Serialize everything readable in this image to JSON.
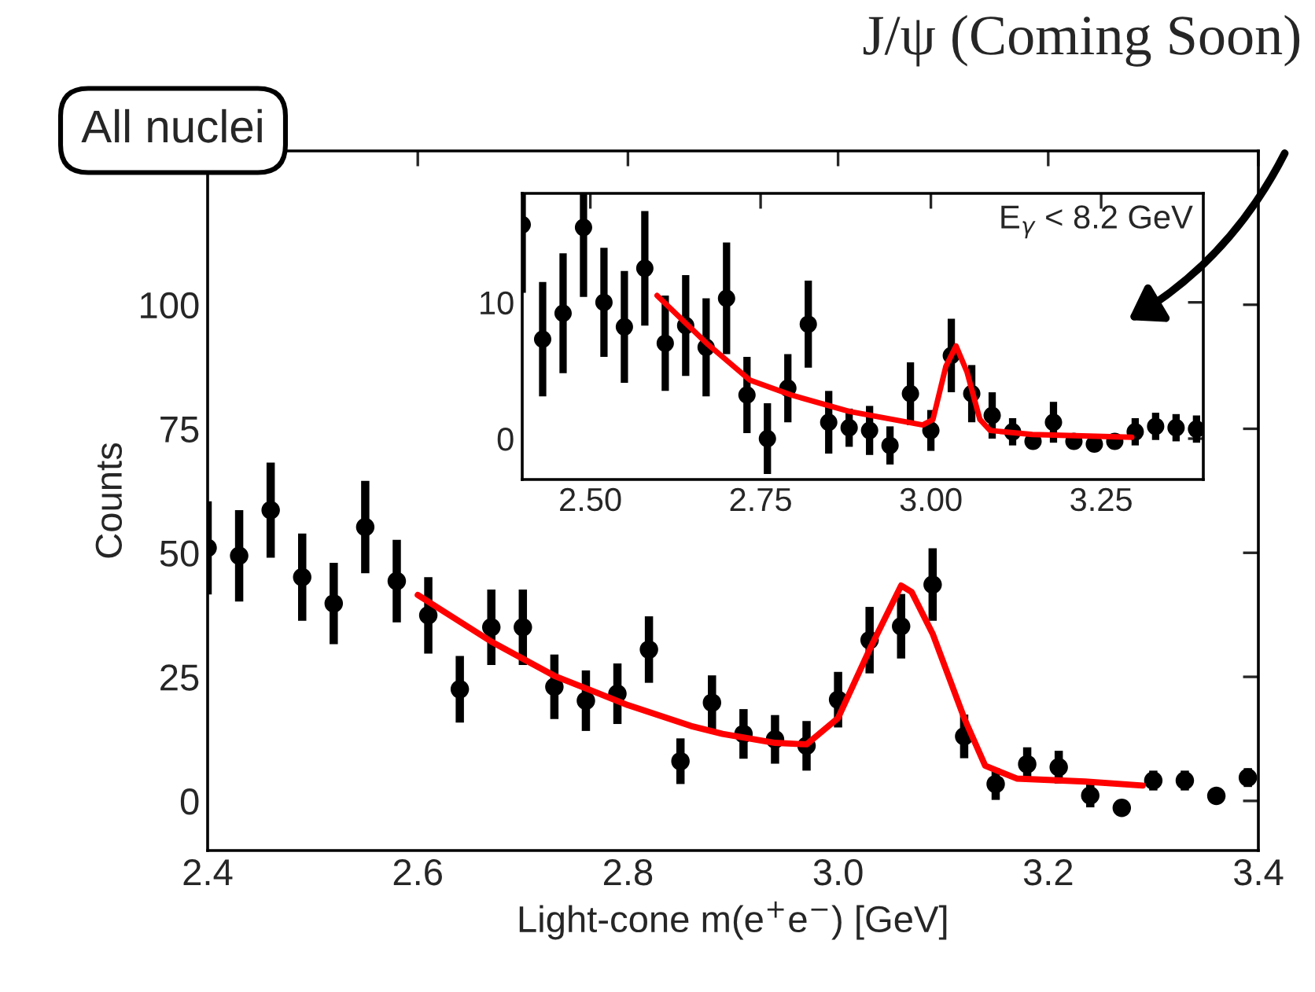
{
  "chart_data": [
    {
      "type": "scatter",
      "title": "J/ψ (Coming Soon)",
      "xlabel": "Light-cone m(e$^{+}$e$^{−}$) [GeV]",
      "ylabel": "Counts",
      "xlim": [
        2.4,
        3.4
      ],
      "xticks": [
        {
          "value": 2.4,
          "label": "2.4"
        },
        {
          "value": 2.6,
          "label": "2.6"
        },
        {
          "value": 2.8,
          "label": "2.8"
        },
        {
          "value": 3.0,
          "label": "3.0"
        },
        {
          "value": 3.2,
          "label": "3.2"
        },
        {
          "value": 3.4,
          "label": "3.4"
        }
      ],
      "ylim": [
        -10,
        131
      ],
      "yticks": [
        0,
        25,
        50,
        75,
        100
      ],
      "marker": "circle",
      "grid": false,
      "legend": false,
      "annotations": [
        "All nuclei"
      ],
      "series": [
        {
          "color": "#000000",
          "x": [
            2.4,
            2.43,
            2.46,
            2.49,
            2.52,
            2.55,
            2.58,
            2.61,
            2.64,
            2.67,
            2.7,
            2.73,
            2.76,
            2.79,
            2.82,
            2.85,
            2.88,
            2.91,
            2.94,
            2.97,
            3.0,
            3.03,
            3.06,
            3.09,
            3.12,
            3.15,
            3.18,
            3.21,
            3.24,
            3.27,
            3.3,
            3.33,
            3.36,
            3.39
          ],
          "values": [
            51,
            49.4,
            58.6,
            45.1,
            39.8,
            55.2,
            44.3,
            37.4,
            22.5,
            35,
            35,
            23,
            20.2,
            21.6,
            30.5,
            8,
            19.8,
            13.5,
            12.4,
            11.1,
            20.4,
            32.4,
            35.2,
            43.6,
            13,
            3.4,
            7.4,
            6.8,
            1.1,
            -1.4,
            4.1,
            4.1,
            1.0,
            4.7
          ],
          "errors": [
            9.4,
            9.2,
            9.6,
            8.8,
            8.2,
            9.3,
            8.3,
            7.7,
            6.7,
            7.6,
            7.6,
            6.5,
            6.1,
            6.1,
            6.7,
            4.6,
            5.5,
            5,
            4.9,
            5,
            5.6,
            6.7,
            6.5,
            7.3,
            4.4,
            3.2,
            3.4,
            3.3,
            2.4,
            null,
            2,
            2,
            null,
            1.9
          ]
        },
        {
          "type": "line",
          "color": "#ff0000",
          "marker": "none",
          "x": [
            2.6,
            2.67,
            2.73,
            2.8,
            2.86,
            2.89,
            2.94,
            2.97,
            3.0,
            3.03,
            3.06,
            3.07,
            3.09,
            3.12,
            3.14,
            3.17,
            3.235,
            3.29
          ],
          "values": [
            41.5,
            32.1,
            25.2,
            19.3,
            15.1,
            13.5,
            11.7,
            11.4,
            16.7,
            30.5,
            43.4,
            42.1,
            33.7,
            16.7,
            7.1,
            4.5,
            3.9,
            3.1
          ]
        }
      ]
    },
    {
      "type": "scatter",
      "xlim": [
        2.4,
        3.4
      ],
      "xticks": [
        {
          "value": 2.5,
          "label": "2.50"
        },
        {
          "value": 2.75,
          "label": "2.75"
        },
        {
          "value": 3.0,
          "label": "3.00"
        },
        {
          "value": 3.25,
          "label": "3.25"
        }
      ],
      "ylim": [
        -3,
        18
      ],
      "yticks": [
        0,
        10
      ],
      "marker": "circle",
      "grid": false,
      "legend": false,
      "annotations": [
        "E$_{γ}$ < 8.2 GeV"
      ],
      "series": [
        {
          "color": "#000000",
          "x": [
            2.4,
            2.43,
            2.46,
            2.49,
            2.52,
            2.55,
            2.58,
            2.61,
            2.64,
            2.67,
            2.7,
            2.73,
            2.76,
            2.79,
            2.82,
            2.85,
            2.88,
            2.91,
            2.94,
            2.97,
            3.0,
            3.03,
            3.06,
            3.09,
            3.12,
            3.15,
            3.18,
            3.21,
            3.24,
            3.27,
            3.3,
            3.33,
            3.36,
            3.39
          ],
          "values": [
            15.7,
            7.3,
            9.2,
            15.5,
            10.0,
            8.2,
            12.5,
            7.0,
            8.3,
            6.7,
            10.3,
            3.2,
            0,
            3.7,
            8.4,
            1.2,
            0.8,
            0.6,
            -0.5,
            3.3,
            0.6,
            6.1,
            3.3,
            1.7,
            0.5,
            -0.2,
            1.2,
            -0.2,
            -0.4,
            -0.2,
            0.5,
            0.9,
            0.8,
            0.7
          ],
          "errors": [
            5,
            4.2,
            4.4,
            5.1,
            4.0,
            4.1,
            4.2,
            3.5,
            3.7,
            3.6,
            4.1,
            2.8,
            2.6,
            2.5,
            3.2,
            2.3,
            1.4,
            1.8,
            1.4,
            2.3,
            1.5,
            2.7,
            2.1,
            1.7,
            1,
            null,
            1.5,
            null,
            null,
            null,
            1,
            1,
            1,
            1
          ]
        },
        {
          "type": "line",
          "color": "#ff0000",
          "marker": "none",
          "x": [
            2.598,
            2.673,
            2.734,
            2.795,
            2.88,
            2.988,
            3.003,
            3.022,
            3.037,
            3.053,
            3.072,
            3.087,
            3.149,
            3.295
          ],
          "values": [
            10.5,
            6.9,
            4.3,
            3.2,
            2.0,
            1.0,
            1.4,
            5.3,
            6.8,
            4.9,
            1.4,
            0.6,
            0.3,
            0.1
          ]
        }
      ]
    }
  ]
}
